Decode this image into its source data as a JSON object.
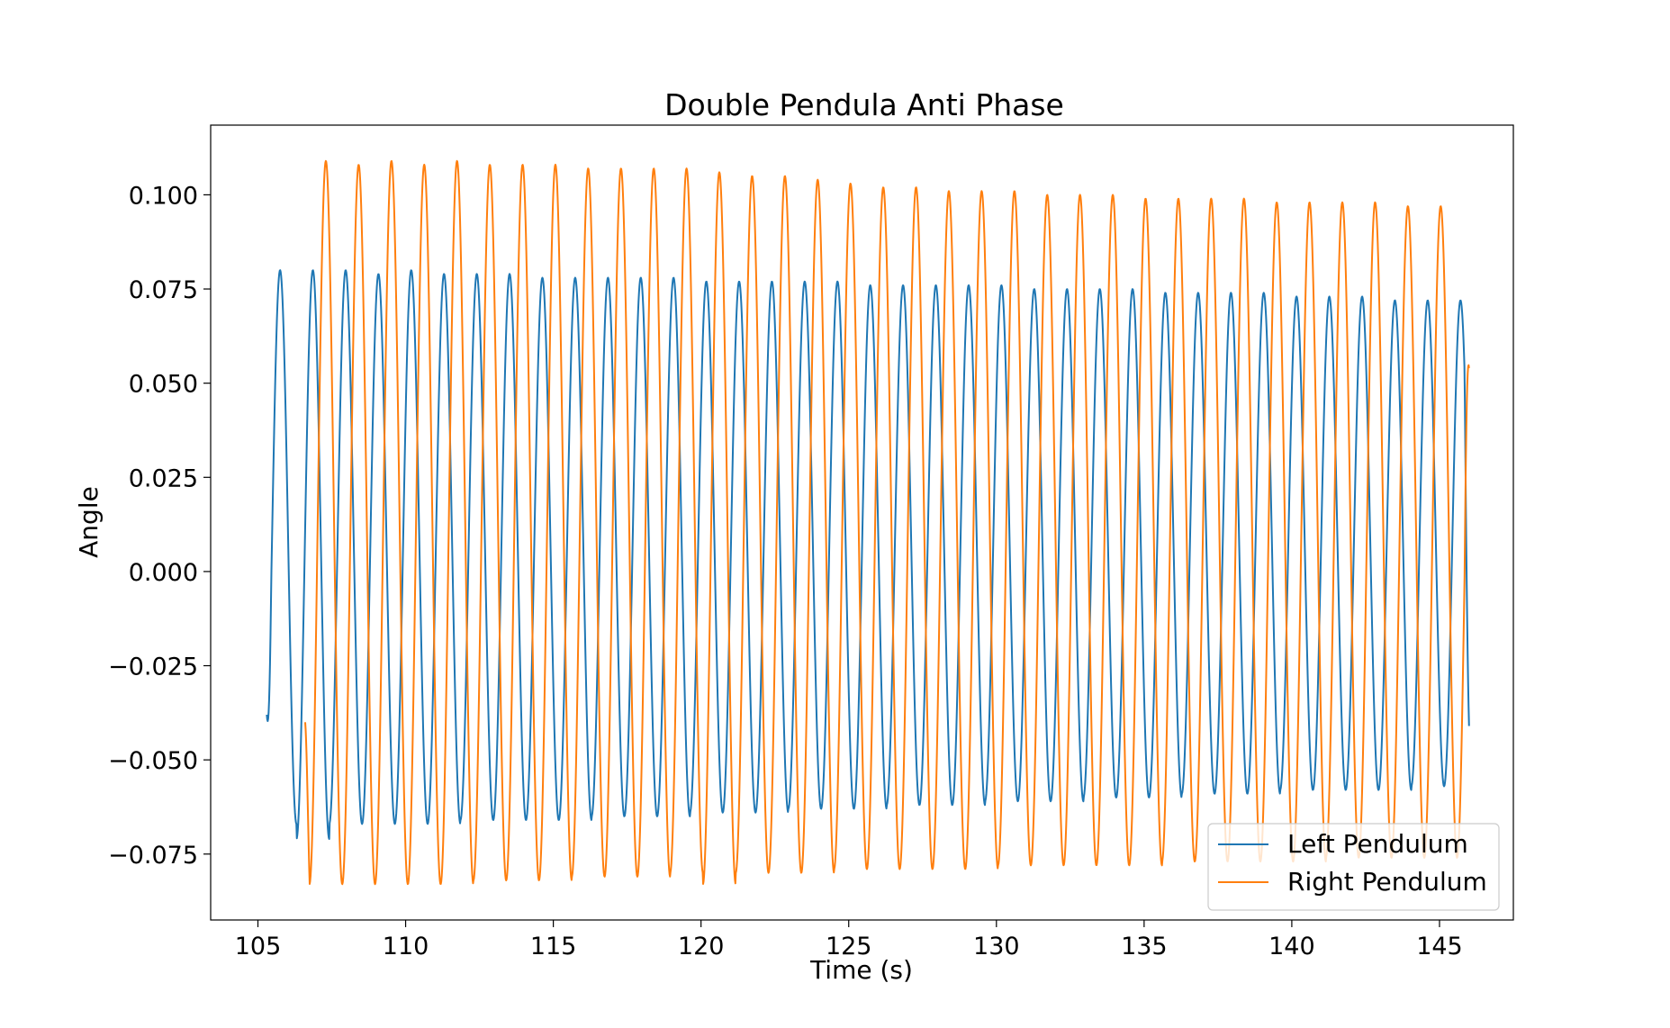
{
  "chart_data": {
    "type": "line",
    "title": "Double Pendula Anti Phase",
    "xlabel": "Time (s)",
    "ylabel": "Angle",
    "xlim": [
      103.4,
      147.5
    ],
    "ylim": [
      -0.0925,
      0.1185
    ],
    "xticks": [
      105,
      110,
      115,
      120,
      125,
      130,
      135,
      140,
      145
    ],
    "yticks": [
      -0.075,
      -0.05,
      -0.025,
      0.0,
      0.025,
      0.05,
      0.075,
      0.1
    ],
    "ytick_labels": [
      "−0.075",
      "−0.050",
      "−0.025",
      "0.000",
      "0.025",
      "0.050",
      "0.075",
      "0.100"
    ],
    "grid": false,
    "legend_position": "lower-right",
    "series": [
      {
        "name": "Left Pendulum",
        "color": "#1f77b4",
        "t_start": 105.3,
        "t_end": 146.0,
        "start_value": -0.038,
        "end_value": -0.041,
        "period": 1.11,
        "peak_times": [
          105.75,
          106.85,
          107.95,
          109.05,
          110.15,
          111.25,
          112.35,
          113.45,
          114.55,
          115.65,
          116.75,
          117.85,
          118.95,
          120.05,
          121.15,
          122.25,
          123.35,
          124.45,
          125.55,
          126.65,
          127.75,
          128.85,
          129.95,
          131.05,
          132.15,
          133.25,
          134.35,
          135.45,
          136.55,
          137.65,
          138.75,
          139.85,
          140.95,
          142.05,
          143.15,
          144.25,
          145.35
        ],
        "peak_values": [
          0.08,
          0.08,
          0.08,
          0.079,
          0.08,
          0.079,
          0.079,
          0.079,
          0.078,
          0.078,
          0.078,
          0.078,
          0.078,
          0.077,
          0.077,
          0.077,
          0.077,
          0.077,
          0.076,
          0.076,
          0.076,
          0.076,
          0.076,
          0.075,
          0.075,
          0.075,
          0.075,
          0.074,
          0.074,
          0.074,
          0.074,
          0.073,
          0.073,
          0.073,
          0.072,
          0.072,
          0.072
        ],
        "trough_values": [
          -0.067,
          -0.071,
          -0.067,
          -0.067,
          -0.067,
          -0.067,
          -0.066,
          -0.066,
          -0.066,
          -0.066,
          -0.065,
          -0.065,
          -0.065,
          -0.064,
          -0.064,
          -0.064,
          -0.063,
          -0.063,
          -0.063,
          -0.062,
          -0.062,
          -0.062,
          -0.061,
          -0.061,
          -0.061,
          -0.06,
          -0.06,
          -0.06,
          -0.059,
          -0.059,
          -0.059,
          -0.058,
          -0.058,
          -0.058,
          -0.058,
          -0.057,
          -0.057
        ]
      },
      {
        "name": "Right Pendulum",
        "color": "#ff7f0e",
        "t_start": 106.6,
        "t_end": 146.0,
        "start_value": -0.04,
        "end_value": 0.054,
        "period": 1.11,
        "peak_times": [
          107.3,
          108.41,
          109.52,
          110.63,
          111.74,
          112.85,
          113.96,
          115.07,
          116.18,
          117.29,
          118.4,
          119.51,
          120.62,
          121.73,
          122.84,
          123.95,
          125.06,
          126.17,
          127.28,
          128.39,
          129.5,
          130.61,
          131.72,
          132.83,
          133.94,
          135.05,
          136.16,
          137.27,
          138.38,
          139.49,
          140.6,
          141.71,
          142.82,
          143.93,
          145.04,
          146.15
        ],
        "peak_values": [
          0.109,
          0.108,
          0.109,
          0.108,
          0.109,
          0.108,
          0.108,
          0.108,
          0.107,
          0.107,
          0.107,
          0.107,
          0.106,
          0.105,
          0.105,
          0.104,
          0.103,
          0.102,
          0.102,
          0.101,
          0.101,
          0.101,
          0.1,
          0.1,
          0.1,
          0.099,
          0.099,
          0.099,
          0.099,
          0.098,
          0.098,
          0.098,
          0.098,
          0.097,
          0.097,
          0.097
        ],
        "trough_values": [
          -0.083,
          -0.083,
          -0.083,
          -0.083,
          -0.083,
          -0.082,
          -0.082,
          -0.082,
          -0.081,
          -0.081,
          -0.081,
          -0.08,
          -0.083,
          -0.08,
          -0.08,
          -0.08,
          -0.079,
          -0.079,
          -0.079,
          -0.079,
          -0.079,
          -0.078,
          -0.078,
          -0.078,
          -0.078,
          -0.078,
          -0.077,
          -0.077,
          -0.077,
          -0.077,
          -0.077,
          -0.076,
          -0.076,
          -0.076,
          -0.076,
          -0.076
        ]
      }
    ]
  }
}
